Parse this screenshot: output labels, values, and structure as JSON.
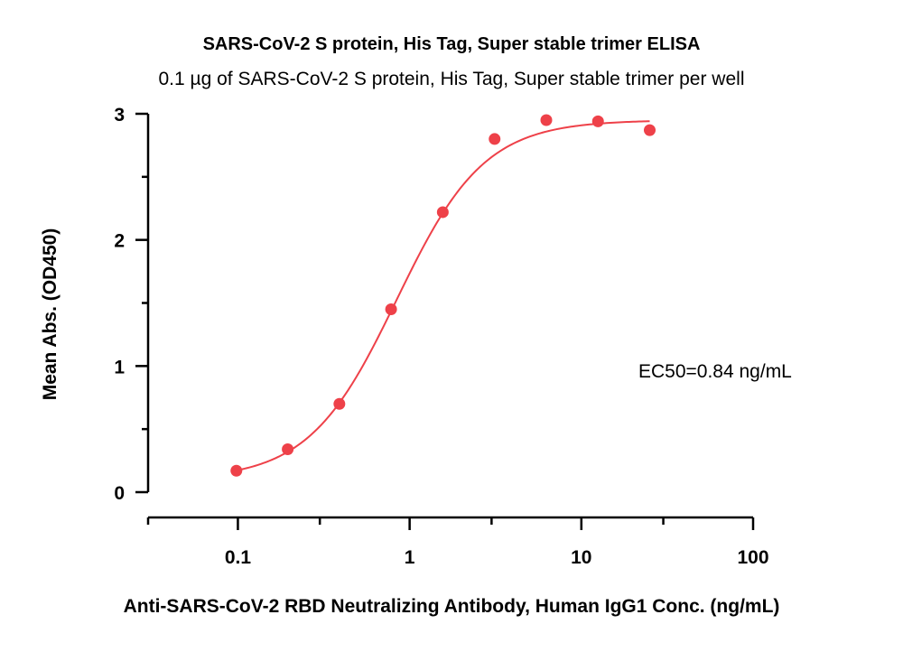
{
  "title": "SARS-CoV-2 S protein, His Tag, Super stable trimer ELISA",
  "subtitle": "0.1 µg of SARS-CoV-2 S protein, His Tag, Super stable trimer per well",
  "chart_data": {
    "type": "scatter",
    "title": "SARS-CoV-2 S protein, His Tag, Super stable trimer ELISA",
    "subtitle": "0.1 µg of SARS-CoV-2 S protein, His Tag, Super stable trimer per well",
    "xlabel": "Anti-SARS-CoV-2 RBD Neutralizing Antibody, Human IgG1 Conc. (ng/mL)",
    "ylabel": "Mean Abs. (OD450)",
    "xscale": "log",
    "xlim": [
      0.03,
      100
    ],
    "ylim": [
      0,
      3
    ],
    "x_ticks": [
      0.1,
      1,
      10,
      100
    ],
    "x_tick_labels": [
      "0.1",
      "1",
      "10",
      "100"
    ],
    "y_ticks": [
      0,
      1,
      2,
      3
    ],
    "y_tick_labels": [
      "0",
      "1",
      "2",
      "3"
    ],
    "series": [
      {
        "x": [
          0.098,
          0.195,
          0.39,
          0.78,
          1.56,
          3.125,
          6.25,
          12.5,
          25
        ],
        "y": [
          0.17,
          0.34,
          0.7,
          1.45,
          2.22,
          2.8,
          2.95,
          2.94,
          2.87
        ],
        "color": "#ee4149",
        "fit": "4PL",
        "fit_params": {
          "bottom": 0.1,
          "top": 2.95,
          "ec50": 0.84,
          "hill": 1.7
        }
      }
    ],
    "annotation": "EC50=0.84 ng/mL",
    "grid": false,
    "legend": "none"
  }
}
